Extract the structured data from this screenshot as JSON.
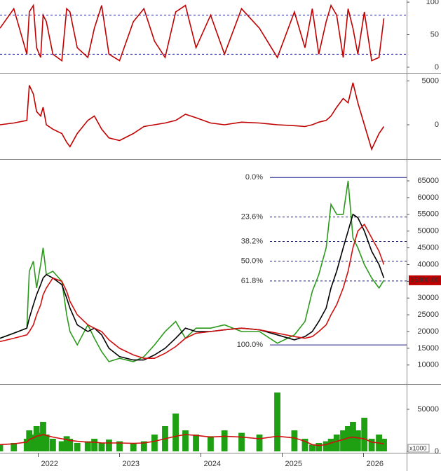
{
  "chart_data": {
    "type": "stock",
    "xlim": [
      2021.53,
      2026.53
    ],
    "xticks": [
      2022,
      2023,
      2024,
      2025,
      2026
    ],
    "x": [
      2021.53,
      2021.7,
      2021.86,
      2021.89,
      2021.94,
      2021.98,
      2022.03,
      2022.06,
      2022.1,
      2022.18,
      2022.29,
      2022.35,
      2022.39,
      2022.48,
      2022.61,
      2022.69,
      2022.78,
      2022.87,
      2023.0,
      2023.17,
      2023.3,
      2023.43,
      2023.56,
      2023.69,
      2023.81,
      2023.94,
      2024.12,
      2024.29,
      2024.5,
      2024.72,
      2024.94,
      2025.15,
      2025.28,
      2025.37,
      2025.45,
      2025.54,
      2025.6,
      2025.67,
      2025.75,
      2025.81,
      2025.87,
      2025.93,
      2026.01,
      2026.1,
      2026.19,
      2026.25
    ],
    "panels": [
      {
        "type": "line",
        "ylim": [
          -8.7,
          103.3
        ],
        "yticks": [
          0,
          50,
          100
        ],
        "ref_lines": [
          80,
          20
        ],
        "series": [
          {
            "color": "#c00000",
            "style": "line",
            "values": [
              60,
              90,
              20,
              85,
              95,
              30,
              15,
              80,
              70,
              20,
              10,
              90,
              85,
              30,
              15,
              60,
              95,
              20,
              10,
              70,
              90,
              40,
              15,
              85,
              95,
              30,
              80,
              20,
              90,
              60,
              15,
              85,
              30,
              90,
              20,
              70,
              95,
              80,
              15,
              90,
              60,
              20,
              85,
              10,
              15,
              75
            ]
          }
        ]
      },
      {
        "type": "line",
        "ylim": [
          -3917,
          5917
        ],
        "yticks": [
          0,
          5000
        ],
        "series": [
          {
            "color": "#c00000",
            "style": "line",
            "values": [
              0,
              200,
              500,
              4500,
              3500,
              1500,
              1000,
              2000,
              0,
              -500,
              -1000,
              -2000,
              -2500,
              -1000,
              500,
              1000,
              -500,
              -1500,
              -1800,
              -1000,
              -200,
              0,
              200,
              500,
              1200,
              800,
              200,
              0,
              300,
              200,
              0,
              -100,
              -200,
              0,
              300,
              500,
              1000,
              2000,
              3000,
              2500,
              4800,
              2500,
              0,
              -2800,
              -1000,
              -200
            ]
          }
        ]
      },
      {
        "type": "line",
        "ylim": [
          4300,
          71500
        ],
        "yticks": [
          10000,
          15000,
          20000,
          25000,
          30000,
          35000,
          40000,
          45000,
          50000,
          55000,
          60000,
          65000
        ],
        "last_value": {
          "value": 35300,
          "label": "35300.00"
        },
        "fib_levels": [
          {
            "label": "0.0%",
            "value": 66000
          },
          {
            "label": "23.6%",
            "value": 54200
          },
          {
            "label": "38.2%",
            "value": 46900
          },
          {
            "label": "50.0%",
            "value": 41000
          },
          {
            "label": "61.8%",
            "value": 35100
          },
          {
            "label": "100.0%",
            "value": 16000
          }
        ],
        "series": [
          {
            "color": "#2a9a1a",
            "style": "line",
            "values": [
              18000,
              19500,
              21000,
              38000,
              41000,
              33000,
              40000,
              45000,
              37000,
              38000,
              35000,
              25000,
              20000,
              16000,
              22000,
              18000,
              14000,
              11000,
              12000,
              11000,
              12500,
              16000,
              20000,
              23000,
              18000,
              21000,
              21000,
              22000,
              20000,
              20000,
              16500,
              19000,
              23000,
              32000,
              37000,
              45000,
              58000,
              55000,
              55000,
              65000,
              48000,
              45000,
              40000,
              36000,
              33000,
              35300
            ]
          },
          {
            "color": "#000000",
            "style": "line",
            "values": [
              18000,
              19500,
              21000,
              24000,
              28000,
              31000,
              34000,
              36000,
              37000,
              36000,
              34000,
              30000,
              27000,
              22000,
              20000,
              21000,
              19000,
              15000,
              12500,
              11500,
              11500,
              13000,
              15000,
              18000,
              21000,
              20000,
              20000,
              20500,
              21000,
              20500,
              19000,
              17500,
              18500,
              20000,
              23000,
              27000,
              33000,
              38000,
              45000,
              50000,
              55000,
              54000,
              50000,
              44000,
              40000,
              36000
            ]
          },
          {
            "color": "#d01010",
            "style": "line",
            "values": [
              17000,
              18000,
              19000,
              20000,
              22000,
              25000,
              28000,
              31000,
              33000,
              36000,
              35000,
              32000,
              29000,
              25000,
              22000,
              21000,
              20000,
              17500,
              15000,
              13000,
              12000,
              12000,
              13500,
              15500,
              18000,
              19500,
              20000,
              20500,
              21000,
              20500,
              19500,
              18500,
              18000,
              18500,
              20000,
              22000,
              25000,
              28000,
              33000,
              38000,
              45000,
              50000,
              52000,
              48000,
              44000,
              40000
            ]
          }
        ]
      },
      {
        "type": "bar",
        "ylim": [
          -1700,
          80000
        ],
        "yticks": [
          0,
          50000
        ],
        "unit": "x1000",
        "series": [
          {
            "color": "#1fa012",
            "style": "bar",
            "values": [
              8000,
              10000,
              15000,
              25000,
              20000,
              30000,
              22000,
              35000,
              20000,
              15000,
              12000,
              18000,
              15000,
              10000,
              12000,
              15000,
              10000,
              14000,
              12000,
              10000,
              12000,
              20000,
              30000,
              45000,
              25000,
              20000,
              18000,
              25000,
              22000,
              20000,
              70000,
              25000,
              15000,
              8000,
              10000,
              12000,
              15000,
              20000,
              25000,
              30000,
              35000,
              25000,
              40000,
              15000,
              20000,
              15000
            ]
          },
          {
            "color": "#d01010",
            "style": "line",
            "values": [
              8000,
              9000,
              11000,
              14000,
              16000,
              18000,
              19000,
              20000,
              19000,
              17000,
              15000,
              14000,
              13000,
              12000,
              11000,
              11000,
              10000,
              10000,
              10000,
              9500,
              10000,
              12000,
              15000,
              18000,
              20000,
              19000,
              17000,
              18000,
              17000,
              15000,
              18000,
              16000,
              12000,
              8000,
              7000,
              8000,
              10000,
              12000,
              14000,
              16000,
              17000,
              16000,
              15000,
              11000,
              10000,
              9000
            ]
          }
        ]
      }
    ]
  }
}
